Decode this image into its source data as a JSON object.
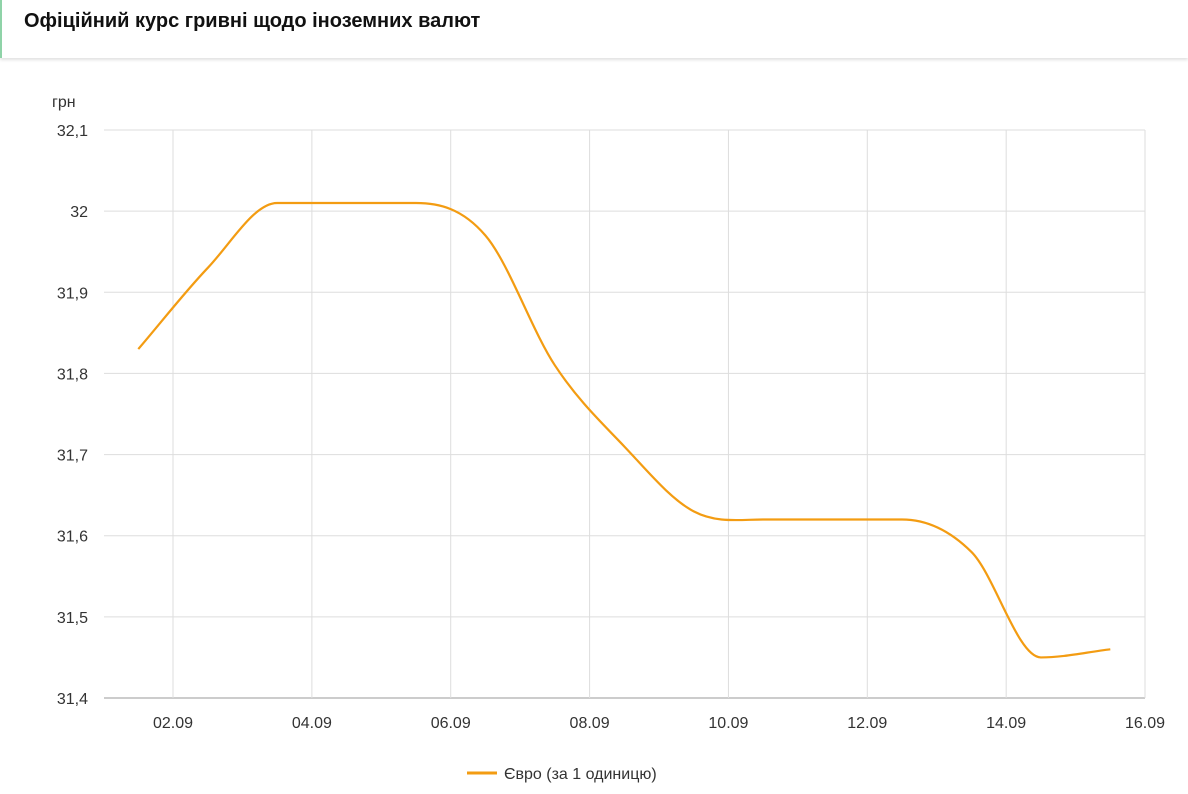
{
  "header": {
    "title": "Офіційний курс гривні щодо іноземних валют"
  },
  "chart_data": {
    "type": "line",
    "title": "",
    "ylabel": "грн",
    "xlabel": "",
    "ylim": [
      31.4,
      32.1
    ],
    "yticks": [
      "31,4",
      "31,5",
      "31,6",
      "31,7",
      "31,8",
      "31,9",
      "32",
      "32,1"
    ],
    "ytick_values": [
      31.4,
      31.5,
      31.6,
      31.7,
      31.8,
      31.9,
      32.0,
      32.1
    ],
    "xticks": [
      "02.09",
      "04.09",
      "06.09",
      "08.09",
      "10.09",
      "12.09",
      "14.09",
      "16.09"
    ],
    "grid": true,
    "legend_position": "bottom",
    "x": [
      "01.09",
      "02.09",
      "03.09",
      "04.09",
      "05.09",
      "06.09",
      "07.09",
      "08.09",
      "09.09",
      "10.09",
      "11.09",
      "12.09",
      "13.09",
      "14.09",
      "15.09"
    ],
    "series": [
      {
        "name": "Євро (за 1 одиницю)",
        "color": "#f39c12",
        "values": [
          31.83,
          31.93,
          32.01,
          32.01,
          32.01,
          31.97,
          31.81,
          31.71,
          31.63,
          31.62,
          31.62,
          31.62,
          31.58,
          31.45,
          31.46
        ]
      }
    ]
  }
}
